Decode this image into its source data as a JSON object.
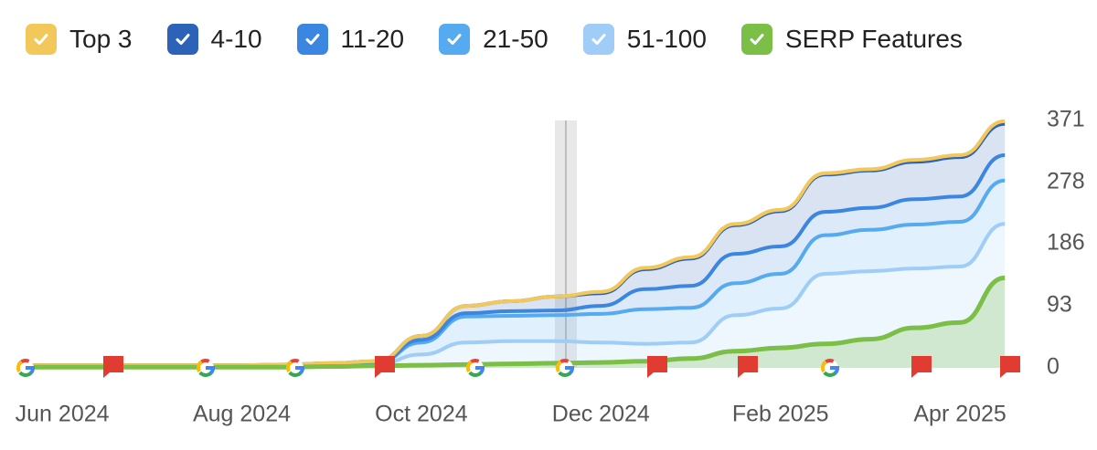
{
  "chart_data": {
    "type": "area",
    "categories": [
      null,
      "Jun 2024",
      null,
      null,
      null,
      "Aug 2024",
      null,
      null,
      null,
      "Oct 2024",
      null,
      null,
      null,
      "Dec 2024",
      null,
      null,
      null,
      "Feb 2025",
      null,
      null,
      null,
      "Apr 2025",
      null
    ],
    "series": [
      {
        "name": "Top 3",
        "color": "#f2c85b",
        "stacked": true,
        "values": [
          0,
          0,
          0,
          0,
          0,
          0,
          0,
          0,
          0,
          0,
          0,
          0,
          0,
          2,
          2,
          2,
          2,
          2,
          2,
          2,
          3,
          3,
          4
        ]
      },
      {
        "name": "4-10",
        "color": "#2c63b8",
        "stacked": true,
        "values": [
          0,
          0,
          0,
          0,
          0,
          0,
          1,
          1,
          2,
          6,
          11,
          15,
          21,
          19,
          30,
          41,
          43,
          53,
          56,
          56,
          56,
          59,
          47
        ]
      },
      {
        "name": "11-20",
        "color": "#3b86e0",
        "stacked": true,
        "values": [
          1,
          1,
          1,
          1,
          1,
          1,
          0,
          1,
          1,
          4,
          5,
          7,
          7,
          12,
          30,
          33,
          44,
          41,
          35,
          33,
          38,
          38,
          38
        ]
      },
      {
        "name": "21-50",
        "color": "#55aaf0",
        "stacked": true,
        "values": [
          0,
          0,
          0,
          0,
          0,
          0,
          1,
          1,
          2,
          18,
          39,
          38,
          39,
          43,
          52,
          52,
          48,
          52,
          58,
          62,
          66,
          67,
          65
        ]
      },
      {
        "name": "51-100",
        "color": "#9fcdf7",
        "stacked": true,
        "values": [
          3,
          3,
          3,
          3,
          3,
          3,
          3,
          4,
          5,
          20,
          38,
          40,
          40,
          38,
          36,
          38,
          79,
          89,
          141,
          145,
          149,
          152,
          216
        ]
      },
      {
        "name": "SERP Features",
        "color": "#7bbf47",
        "stacked": false,
        "values": [
          1,
          1,
          1,
          1,
          1,
          1,
          1,
          2,
          3,
          4,
          5,
          6,
          7,
          8,
          10,
          14,
          25,
          30,
          36,
          43,
          60,
          68,
          135
        ]
      }
    ],
    "ylim": [
      0,
      371
    ],
    "yticks": [
      0,
      93,
      186,
      278,
      371
    ],
    "grid": true
  }
}
